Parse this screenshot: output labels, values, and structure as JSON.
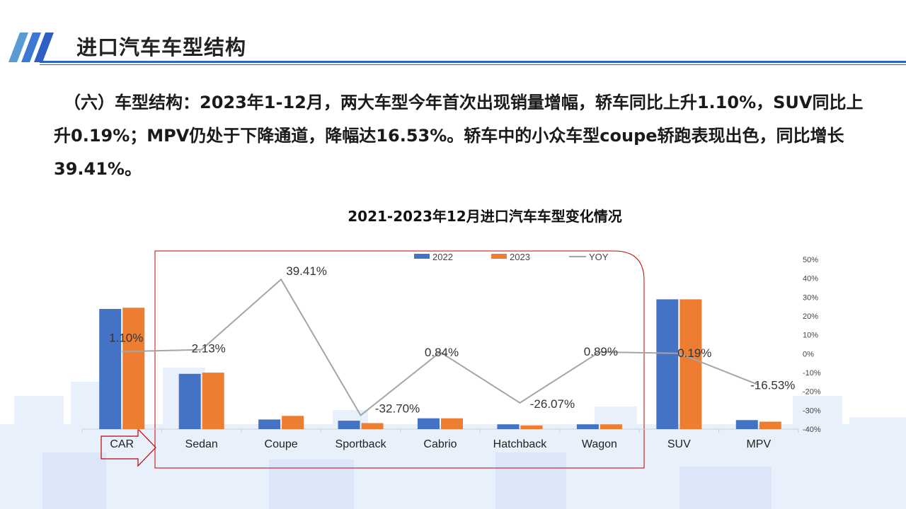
{
  "header": {
    "title": "进口汽车车型结构"
  },
  "summary_text": "（六）车型结构：2023年1-12月，两大车型今年首次出现销量增幅，轿车同比上升1.10%，SUV同比上升0.19%；MPV仍处于下降通道，降幅达16.53%。轿车中的小众车型coupe轿跑表现出色，同比增长39.41%。",
  "colors": {
    "series_2022": "#4472c4",
    "series_2023": "#ed7d31",
    "yoy_line": "#a5a5a5",
    "highlight_box": "#c00000",
    "header_accent": "#2f62c7"
  },
  "chart_data": {
    "type": "bar",
    "title": "2021-2023年12月进口汽车车型变化情况",
    "categories": [
      "CAR",
      "Sedan",
      "Coupe",
      "Sportback",
      "Cabrio",
      "Hatchback",
      "Wagon",
      "SUV",
      "MPV"
    ],
    "series": [
      {
        "name": "2022",
        "values": [
          100,
          46,
          8,
          7,
          9,
          4,
          4,
          108,
          7.5
        ]
      },
      {
        "name": "2023",
        "values": [
          101,
          47,
          11,
          5,
          9,
          3,
          4,
          108,
          6.2
        ]
      }
    ],
    "line_series": {
      "name": "YOY",
      "values": [
        1.1,
        2.13,
        39.41,
        -32.7,
        0.84,
        -26.07,
        0.89,
        0.19,
        -16.53
      ],
      "labels": [
        "1.10%",
        "2.13%",
        "39.41%",
        "-32.70%",
        "0.84%",
        "-26.07%",
        "0.89%",
        "0.19%",
        "-16.53%"
      ]
    },
    "y2_ticks": [
      "50%",
      "40%",
      "30%",
      "20%",
      "10%",
      "0%",
      "-10%",
      "-20%",
      "-30%",
      "-40%"
    ],
    "y2_range": [
      -40,
      50
    ],
    "legend": {
      "position": "top",
      "items": [
        "2022",
        "2023",
        "YOY"
      ]
    },
    "grid": false,
    "highlight_group": "Sedan to Wagon"
  }
}
